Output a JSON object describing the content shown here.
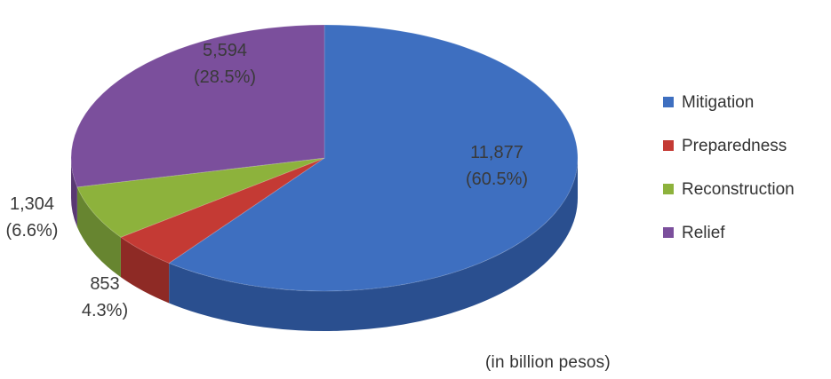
{
  "chart_data": {
    "type": "pie",
    "style": "3d",
    "unit_note": "(in billion pesos)",
    "legend_position": "right",
    "slices": [
      {
        "name": "Mitigation",
        "value": 11877,
        "value_label": "11,877",
        "percent_label": "(60.5%)",
        "color": "#3e6fc0",
        "side_color": "#2a4f8f"
      },
      {
        "name": "Preparedness",
        "value": 853,
        "value_label": "853",
        "percent_label": "4.3%)",
        "color": "#c43a34",
        "side_color": "#8e2a25"
      },
      {
        "name": "Reconstruction",
        "value": 1304,
        "value_label": "1,304",
        "percent_label": "(6.6%)",
        "color": "#8db23c",
        "side_color": "#678530"
      },
      {
        "name": "Relief",
        "value": 5594,
        "value_label": "5,594",
        "percent_label": "(28.5%)",
        "color": "#7b4f9c",
        "side_color": "#593873"
      }
    ]
  }
}
